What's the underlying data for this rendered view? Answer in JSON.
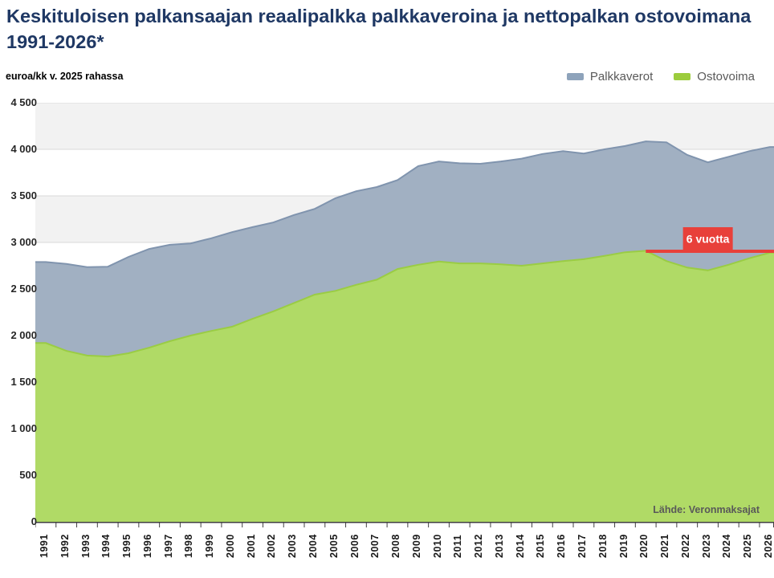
{
  "header": {
    "title": "Keskituloisen palkansaajan reaalipalkka palkkaveroina ja nettopalkan ostovoimana 1991-2026*",
    "unit_label": "euroa/kk v. 2025 rahassa"
  },
  "legend": [
    {
      "label": "Palkkaverot",
      "color": "#8ea3bb"
    },
    {
      "label": "Ostovoima",
      "color": "#9ccc3d"
    }
  ],
  "annotation": {
    "label": "6 vuotta",
    "value": 2905,
    "from_year": 2020,
    "to_year": 2026,
    "box_center_year": 2023,
    "color": "#e8403a",
    "text_color": "#ffffff"
  },
  "source": "Lähde: Veronmaksajat",
  "chart_data": {
    "type": "area",
    "stacked": true,
    "title": "Keskituloisen palkansaajan reaalipalkka palkkaveroina ja nettopalkan ostovoimana 1991-2026*",
    "xlabel": "",
    "ylabel": "euroa/kk v. 2025 rahassa",
    "ylim": [
      0,
      4500
    ],
    "ytick_step": 500,
    "ytick_labels": [
      "4 500",
      "4 000",
      "3 500",
      "3 000",
      "2 500",
      "2 000",
      "1 500",
      "1 000",
      "500",
      "0"
    ],
    "grid": "horizontal-only",
    "band_fill_alternate": [
      "#f2f2f2",
      "#ffffff"
    ],
    "gridline_color": "#d9d9d9",
    "legend_position": "top-right",
    "x": [
      1991,
      1992,
      1993,
      1994,
      1995,
      1996,
      1997,
      1998,
      1999,
      2000,
      2001,
      2002,
      2003,
      2004,
      2005,
      2006,
      2007,
      2008,
      2009,
      2010,
      2011,
      2012,
      2013,
      2014,
      2015,
      2016,
      2017,
      2018,
      2019,
      2020,
      2021,
      2022,
      2023,
      2024,
      2025,
      2026
    ],
    "series": [
      {
        "name": "Ostovoima",
        "meaning": "nettopalkan ostovoima (bottom stacked band)",
        "fill": "#b0da66",
        "stroke": "#9acc44",
        "values": [
          1920,
          1835,
          1785,
          1775,
          1810,
          1870,
          1940,
          2000,
          2050,
          2095,
          2180,
          2260,
          2350,
          2440,
          2480,
          2545,
          2600,
          2715,
          2760,
          2795,
          2775,
          2775,
          2765,
          2750,
          2775,
          2800,
          2820,
          2855,
          2895,
          2910,
          2800,
          2730,
          2700,
          2760,
          2830,
          2890
        ]
      },
      {
        "name": "Palkkaverot",
        "meaning": "palkkaverot stacked on top; stack top = reaalipalkka",
        "fill": "#a1b0c2",
        "stroke": "#8094ae",
        "values": [
          870,
          935,
          950,
          965,
          1035,
          1060,
          1035,
          990,
          995,
          1015,
          985,
          955,
          945,
          920,
          995,
          1005,
          995,
          955,
          1060,
          1075,
          1075,
          1070,
          1105,
          1150,
          1175,
          1180,
          1135,
          1145,
          1140,
          1175,
          1275,
          1210,
          1160,
          1160,
          1150,
          1135
        ]
      }
    ]
  }
}
